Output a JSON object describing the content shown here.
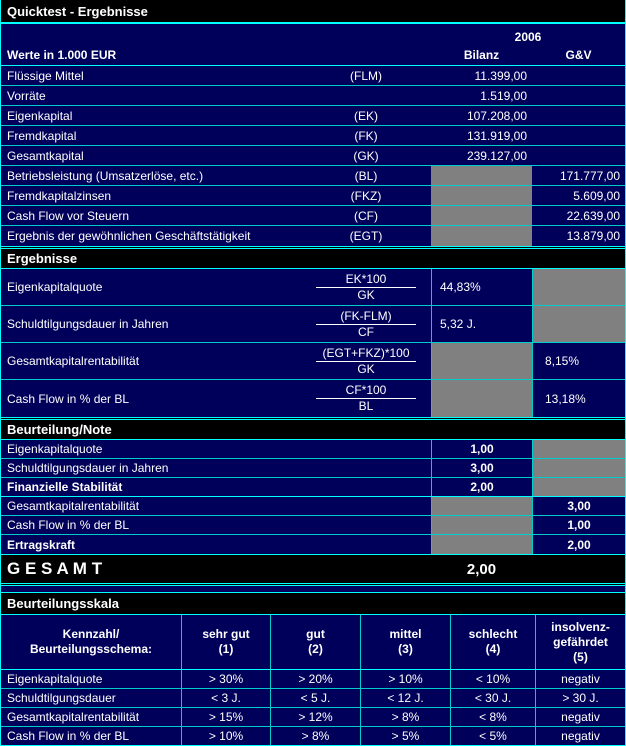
{
  "colors": {
    "background": "#00005A",
    "section_bar": "#000000",
    "accent": "#00FFFF",
    "grid_line": "#00CCCC",
    "blocked_cell": "#808080",
    "text": "#FFFFFF"
  },
  "title": "Quicktest - Ergebnisse",
  "header": {
    "year": "2006",
    "unit_label": "Werte in 1.000 EUR",
    "col_bilanz": "Bilanz",
    "col_gv": "G&V"
  },
  "inputs": {
    "rows": [
      {
        "label": "Flüssige Mittel",
        "code": "(FLM)",
        "bilanz": "11.399,00",
        "gv": "",
        "blocked": "none"
      },
      {
        "label": "Vorräte",
        "code": "",
        "bilanz": "1.519,00",
        "gv": "",
        "blocked": "none"
      },
      {
        "label": "Eigenkapital",
        "code": "(EK)",
        "bilanz": "107.208,00",
        "gv": "",
        "blocked": "none"
      },
      {
        "label": "Fremdkapital",
        "code": "(FK)",
        "bilanz": "131.919,00",
        "gv": "",
        "blocked": "none"
      },
      {
        "label": "Gesamtkapital",
        "code": "(GK)",
        "bilanz": "239.127,00",
        "gv": "",
        "blocked": "none"
      },
      {
        "label": "Betriebsleistung (Umsatzerlöse, etc.)",
        "code": "(BL)",
        "bilanz": "",
        "gv": "171.777,00",
        "blocked": "bilanz"
      },
      {
        "label": "Fremdkapitalzinsen",
        "code": "(FKZ)",
        "bilanz": "",
        "gv": "5.609,00",
        "blocked": "bilanz"
      },
      {
        "label": "Cash Flow vor Steuern",
        "code": "(CF)",
        "bilanz": "",
        "gv": "22.639,00",
        "blocked": "bilanz"
      },
      {
        "label": "Ergebnis der gewöhnlichen Geschäftstätigkeit",
        "code": "(EGT)",
        "bilanz": "",
        "gv": "13.879,00",
        "blocked": "bilanz"
      }
    ]
  },
  "results": {
    "title": "Ergebnisse",
    "rows": [
      {
        "label": "Eigenkapitalquote",
        "numerator": "EK*100",
        "denominator": "GK",
        "bilanz": "44,83%",
        "gv": "",
        "blocked": "gv"
      },
      {
        "label": "Schuldtilgungsdauer in Jahren",
        "numerator": "(FK-FLM)",
        "denominator": "CF",
        "bilanz": "5,32 J.",
        "gv": "",
        "blocked": "gv"
      },
      {
        "label": "Gesamtkapitalrentabilität",
        "numerator": "(EGT+FKZ)*100",
        "denominator": "GK",
        "bilanz": "",
        "gv": "8,15%",
        "blocked": "bilanz"
      },
      {
        "label": "Cash Flow in % der BL",
        "numerator": "CF*100",
        "denominator": "BL",
        "bilanz": "",
        "gv": "13,18%",
        "blocked": "bilanz"
      }
    ]
  },
  "ratings": {
    "title": "Beurteilung/Note",
    "rows": [
      {
        "label": "Eigenkapitalquote",
        "bilanz": "1,00",
        "gv": "",
        "blocked": "gv",
        "emphasis": false
      },
      {
        "label": "Schuldtilgungsdauer in Jahren",
        "bilanz": "3,00",
        "gv": "",
        "blocked": "gv",
        "emphasis": false
      },
      {
        "label": "Finanzielle Stabilität",
        "bilanz": "2,00",
        "gv": "",
        "blocked": "gv",
        "emphasis": true
      },
      {
        "label": "Gesamtkapitalrentabilität",
        "bilanz": "",
        "gv": "3,00",
        "blocked": "bilanz",
        "emphasis": false
      },
      {
        "label": "Cash Flow in % der BL",
        "bilanz": "",
        "gv": "1,00",
        "blocked": "bilanz",
        "emphasis": false
      },
      {
        "label": "Ertragskraft",
        "bilanz": "",
        "gv": "2,00",
        "blocked": "bilanz",
        "emphasis": true
      }
    ]
  },
  "total": {
    "label": "G E S A M T",
    "value": "2,00"
  },
  "scale": {
    "title": "Beurteilungsskala",
    "corner": "Kennzahl/\nBeurteilungsschema:",
    "columns": [
      "sehr gut\n(1)",
      "gut\n(2)",
      "mittel\n(3)",
      "schlecht\n(4)",
      "insolvenz-\ngefährdet\n(5)"
    ],
    "rows": [
      {
        "label": "Eigenkapitalquote",
        "values": [
          "> 30%",
          "> 20%",
          "> 10%",
          "< 10%",
          "negativ"
        ]
      },
      {
        "label": "Schuldtilgungsdauer",
        "values": [
          "< 3 J.",
          "< 5 J.",
          "< 12 J.",
          "< 30 J.",
          "> 30 J."
        ]
      },
      {
        "label": "Gesamtkapitalrentabilität",
        "values": [
          "> 15%",
          "> 12%",
          "> 8%",
          "< 8%",
          "negativ"
        ]
      },
      {
        "label": "Cash Flow in % der BL",
        "values": [
          "> 10%",
          "> 8%",
          "> 5%",
          "< 5%",
          "negativ"
        ]
      }
    ]
  }
}
